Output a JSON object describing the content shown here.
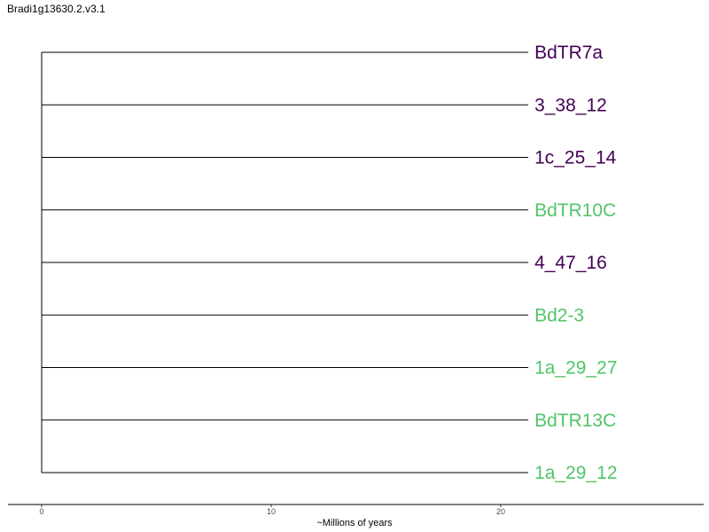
{
  "chart_data": {
    "type": "tree",
    "title": "Bradi1g13630.2.v3.1",
    "xlabel": "~Millions of years",
    "x_ticks": [
      "0",
      "10",
      "20"
    ],
    "xlim": [
      0,
      28.6
    ],
    "colors": {
      "purple": "#440154",
      "green": "#52c569"
    },
    "tips": [
      {
        "label": "BdTR7a",
        "color": "purple",
        "branch_length": 21.2
      },
      {
        "label": "3_38_12",
        "color": "purple",
        "branch_length": 21.2
      },
      {
        "label": "1c_25_14",
        "color": "purple",
        "branch_length": 21.2
      },
      {
        "label": "BdTR10C",
        "color": "green",
        "branch_length": 21.2
      },
      {
        "label": "4_47_16",
        "color": "purple",
        "branch_length": 21.2
      },
      {
        "label": "Bd2-3",
        "color": "green",
        "branch_length": 21.2
      },
      {
        "label": "1a_29_27",
        "color": "green",
        "branch_length": 21.2
      },
      {
        "label": "BdTR13C",
        "color": "green",
        "branch_length": 21.2
      },
      {
        "label": "1a_29_12",
        "color": "green",
        "branch_length": 21.2
      }
    ]
  }
}
